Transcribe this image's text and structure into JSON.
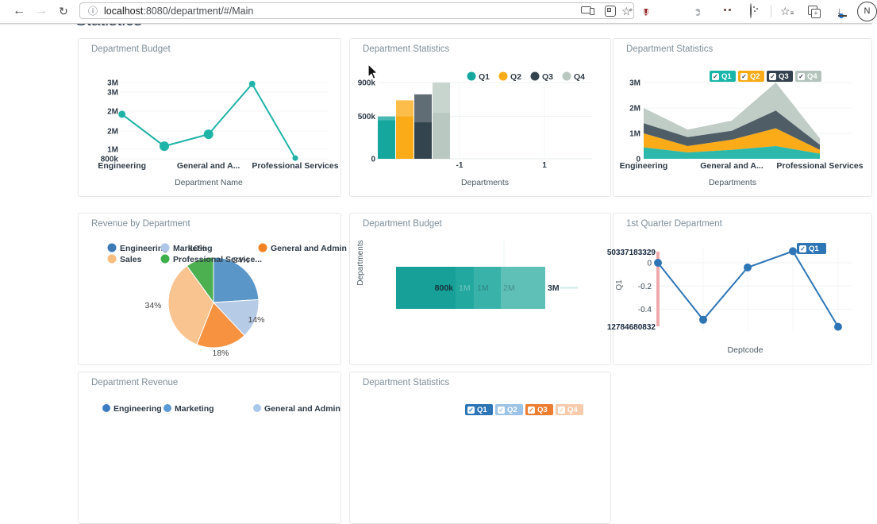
{
  "colors": {
    "teal": "#1ab5aa",
    "orange": "#fbab18",
    "slate": "#33424e",
    "sage": "#b4c4bd",
    "blue": "#2e75b6",
    "light_blue": "#9dc3e6",
    "deep_orange": "#ed7d31",
    "light_orange": "#f8cbad",
    "red_marker": "#e57373"
  },
  "browser": {
    "url": {
      "host": "localhost",
      "path": ":8080/department/#/Main"
    },
    "profile_initial": "N",
    "icons": [
      "back-arrow",
      "forward-arrow",
      "refresh",
      "page-info",
      "send-to-devices",
      "apps-grid",
      "add-favorite",
      "ublock-shield",
      "google-circle",
      "media-play",
      "notes",
      "cookie",
      "favorites-star",
      "collections",
      "download",
      "profile-avatar"
    ],
    "glyphs": {
      "back": "←",
      "forward": "→",
      "refresh": "↻",
      "info": "ⓘ",
      "star": "☆",
      "play": "▶",
      "download": "↓",
      "check": "✓"
    }
  },
  "page": {
    "heading": "Statistics"
  },
  "charts": {
    "dept_budget_line": {
      "type": "line",
      "title": "Department Budget",
      "xlabel": "Department Name",
      "x_tick_labels": [
        "Engineering",
        "General and A...",
        "Professional Services"
      ],
      "line_color": "#1fb3a8",
      "values_m": [
        2.11,
        1.17,
        1.52,
        3.0,
        0.82
      ],
      "marker_r": [
        4.5,
        6,
        6,
        4,
        3.5
      ],
      "y_ticks": [
        {
          "label": "3M",
          "v": 3.04
        },
        {
          "label": "3M",
          "v": 2.76
        },
        {
          "label": "2M",
          "v": 2.2
        },
        {
          "label": "2M",
          "v": 1.62
        },
        {
          "label": "1M",
          "v": 1.08
        },
        {
          "label": "800k",
          "v": 0.8
        }
      ],
      "y_range": [
        0.8,
        3.04
      ]
    },
    "dept_stats_bar": {
      "type": "bar",
      "title": "Department Statistics",
      "xlabel": "Departments",
      "x_tick_labels": [
        "-1",
        "1"
      ],
      "legend": [
        {
          "label": "Q1",
          "color": "#15a79e"
        },
        {
          "label": "Q2",
          "color": "#fbab18"
        },
        {
          "label": "Q3",
          "color": "#34444e"
        },
        {
          "label": "Q4",
          "color": "#b9c8c1"
        }
      ],
      "values_k": [
        500,
        690,
        760,
        900
      ],
      "overlay_from_k": [
        455,
        500,
        430,
        540
      ],
      "y_ticks": [
        {
          "label": "900k",
          "v": 900
        },
        {
          "label": "500k",
          "v": 500
        },
        {
          "label": "0",
          "v": 0
        }
      ],
      "y_max": 900
    },
    "dept_stats_area": {
      "type": "area",
      "title": "Department Statistics",
      "xlabel": "Departments",
      "x_tick_labels": [
        "Engineering",
        "General and A...",
        "Professional Services"
      ],
      "legend": [
        {
          "label": "Q1",
          "color": "#1ab5aa"
        },
        {
          "label": "Q2",
          "color": "#fbab18"
        },
        {
          "label": "Q3",
          "color": "#33424e"
        },
        {
          "label": "Q4",
          "color": "#b4c4bd"
        }
      ],
      "series_cum_m": {
        "Q1": [
          0.45,
          0.25,
          0.35,
          0.5,
          0.2
        ],
        "Q2": [
          1.0,
          0.5,
          0.75,
          1.2,
          0.35
        ],
        "Q3": [
          1.4,
          0.85,
          1.1,
          1.9,
          0.55
        ],
        "Q4": [
          2.0,
          1.15,
          1.5,
          3.0,
          0.8
        ]
      },
      "band_colors": [
        "#2db8ac",
        "#fbab18",
        "#4e5d66",
        "#c0ccc6"
      ],
      "y_ticks": [
        {
          "label": "3M",
          "v": 3
        },
        {
          "label": "2M",
          "v": 2
        },
        {
          "label": "1M",
          "v": 1
        },
        {
          "label": "0",
          "v": 0
        }
      ],
      "y_max": 3
    },
    "revenue_pie": {
      "type": "pie",
      "title": "Revenue by Department",
      "slices": [
        {
          "label": "Engineering",
          "pct": 24,
          "color": "#5b96c8",
          "pct_label": "24%"
        },
        {
          "label": "Marketing",
          "pct": 14,
          "color": "#b6cbe6",
          "pct_label": "14%"
        },
        {
          "label": "General and Admin",
          "pct": 18,
          "color": "#f79240",
          "pct_label": "18%"
        },
        {
          "label": "Sales",
          "pct": 34,
          "color": "#fac491",
          "pct_label": "34%"
        },
        {
          "label": "Professional Service...",
          "pct": 10,
          "color": "#4caf50",
          "pct_label": "10%"
        }
      ],
      "legend": [
        {
          "label": "Engineering",
          "color": "#3d7ab5"
        },
        {
          "label": "Marketing",
          "color": "#aec7e8"
        },
        {
          "label": "General and Admin",
          "color": "#f28324"
        },
        {
          "label": "Sales",
          "color": "#f9bd7f"
        },
        {
          "label": "Professional Service...",
          "color": "#3faf4c"
        }
      ]
    },
    "dept_budget_hbar": {
      "type": "hbar",
      "title": "Department Budget",
      "ylabel": "Departments",
      "value_labels": [
        "800k",
        "1M",
        "1M",
        "2M",
        "3M"
      ],
      "shades": [
        "#17a097",
        "#23a89f",
        "#39b2a9",
        "#5ec0b7"
      ]
    },
    "q1_line": {
      "type": "line",
      "title": "1st Quarter Department",
      "xlabel": "Deptcode",
      "ylabel": "Q1",
      "legend_button": {
        "label": "Q1",
        "color": "#2e75b6"
      },
      "values": [
        0,
        -0.49,
        -0.04,
        0.1,
        -0.55
      ],
      "y_ticks": [
        {
          "label": "0",
          "v": 0
        },
        {
          "label": "-0.2",
          "v": -0.2
        },
        {
          "label": "-0.4",
          "v": -0.4
        }
      ],
      "y_edge_labels": {
        "top": "50337183329",
        "bottom": "12784680832"
      },
      "line_color": "#2e75b6",
      "marker_color": "#e57373"
    },
    "dept_revenue": {
      "title": "Department Revenue",
      "legend": [
        {
          "label": "Engineering",
          "color": "#3b7cc4"
        },
        {
          "label": "Marketing",
          "color": "#5b9bd5"
        },
        {
          "label": "General and Admin",
          "color": "#a9c7e8"
        }
      ]
    },
    "dept_stats_buttons": {
      "title": "Department Statistics",
      "buttons": [
        {
          "label": "Q1",
          "color": "#2e75b6"
        },
        {
          "label": "Q2",
          "color": "#9dc3e6"
        },
        {
          "label": "Q3",
          "color": "#ed7d31"
        },
        {
          "label": "Q4",
          "color": "#f8cbad"
        }
      ]
    }
  }
}
